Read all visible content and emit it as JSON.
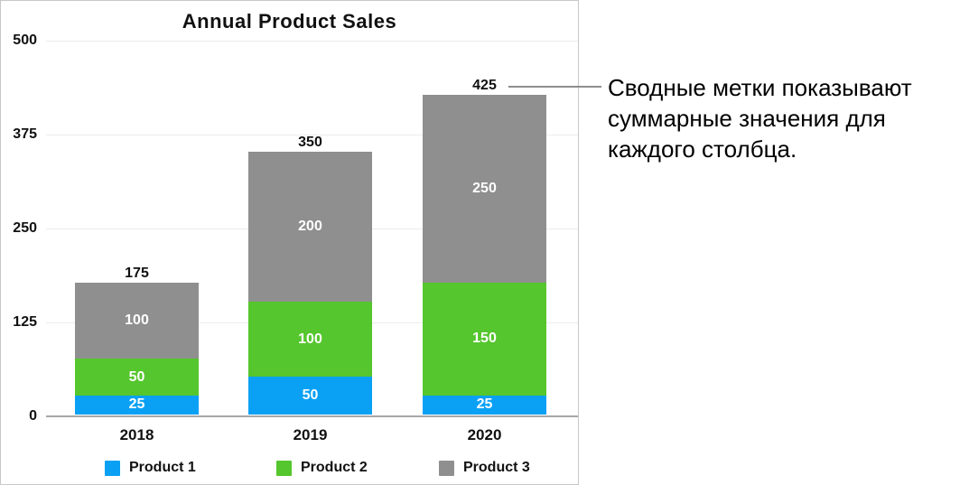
{
  "chart_data": {
    "type": "bar",
    "stacked": true,
    "title": "Annual Product Sales",
    "categories": [
      "2018",
      "2019",
      "2020"
    ],
    "series": [
      {
        "name": "Product 1",
        "color": "#0aa1f5",
        "values": [
          25,
          50,
          25
        ]
      },
      {
        "name": "Product 2",
        "color": "#55c62d",
        "values": [
          50,
          100,
          150
        ]
      },
      {
        "name": "Product 3",
        "color": "#8f8f8f",
        "values": [
          100,
          200,
          250
        ]
      }
    ],
    "totals": [
      175,
      350,
      425
    ],
    "y_ticks": [
      0,
      125,
      250,
      375,
      500
    ],
    "ylim": [
      0,
      500
    ],
    "grid": true,
    "legend_position": "bottom",
    "value_labels": "inside-white",
    "total_labels": "above-bar"
  },
  "annotation": {
    "lines": [
      "Сводные метки показывают",
      "суммарные значения для",
      "каждого столбца."
    ]
  },
  "colors": {
    "panel_border": "#c8c8c8",
    "gridline": "#ececec",
    "axis_line": "#a6a6a6",
    "callout_line": "#8e8e8e",
    "text": "#111111",
    "bar_label_text": "#ffffff"
  }
}
